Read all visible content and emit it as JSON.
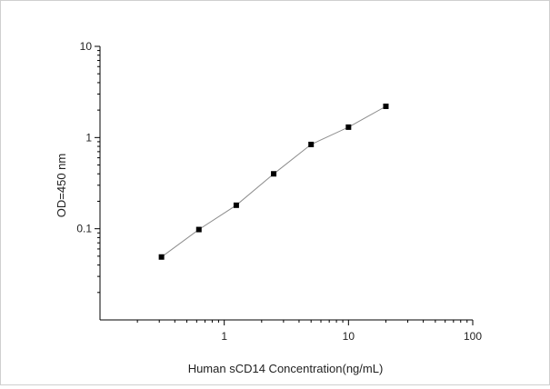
{
  "chart_data": {
    "type": "line",
    "title": "",
    "xlabel": "Human sCD14  Concentration(ng/mL)",
    "ylabel": "OD=450 nm",
    "x_scale": "log",
    "y_scale": "log",
    "xlim": [
      0.1,
      100
    ],
    "ylim": [
      0.01,
      10
    ],
    "x_ticks": [
      {
        "value": 1,
        "label": "1"
      },
      {
        "value": 10,
        "label": "10"
      },
      {
        "value": 100,
        "label": "100"
      }
    ],
    "y_ticks": [
      {
        "value": 0.1,
        "label": "0.1"
      },
      {
        "value": 1,
        "label": "1"
      },
      {
        "value": 10,
        "label": "10"
      }
    ],
    "grid": false,
    "legend": "none",
    "series": [
      {
        "marker": "square",
        "color": "#000000",
        "line_color": "#8c8c8c",
        "x": [
          0.3125,
          0.625,
          1.25,
          2.5,
          5,
          10,
          20
        ],
        "y": [
          0.049,
          0.098,
          0.181,
          0.4,
          0.84,
          1.3,
          2.2
        ]
      }
    ]
  }
}
